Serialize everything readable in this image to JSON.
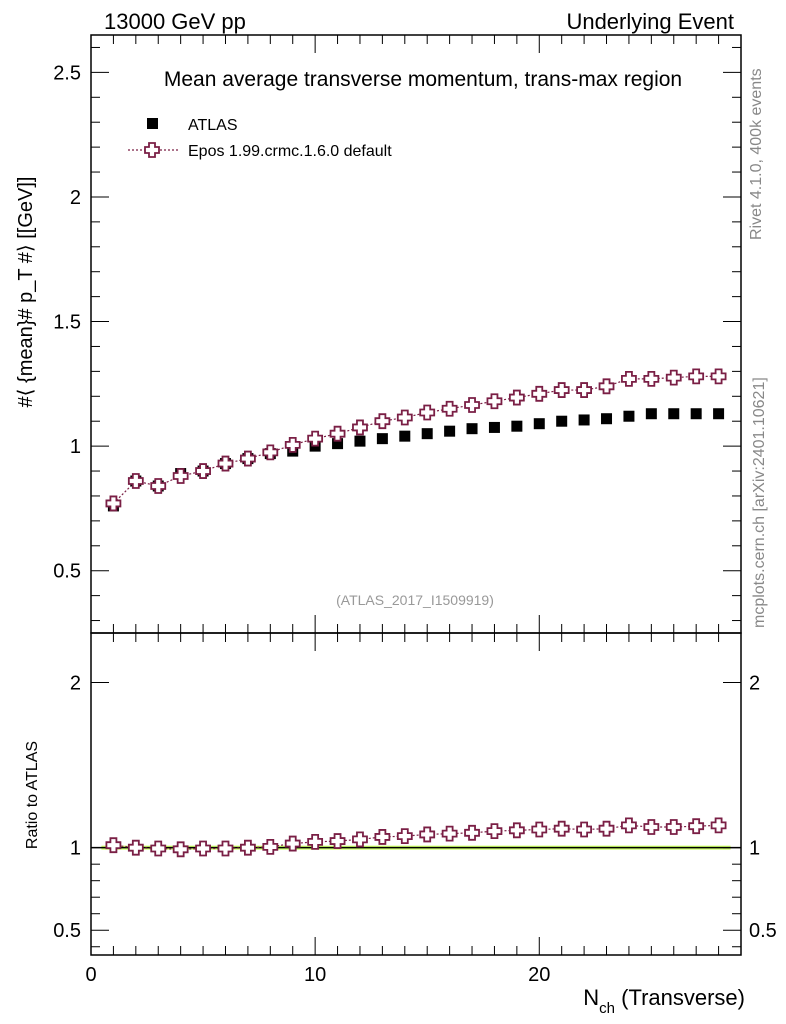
{
  "header": {
    "left": "13000 GeV pp",
    "right": "Underlying Event"
  },
  "side_labels": {
    "rivet": "Rivet 4.1.0,  400k events",
    "mcplots": "mcplots.cern.ch [arXiv:2401.10621]"
  },
  "colors": {
    "data": "#000000",
    "mc": "#7a1f45",
    "band": "#ccff66"
  },
  "chart_data": [
    {
      "type": "scatter",
      "panel": "main",
      "title": "Mean average transverse momentum, trans-max region",
      "analysis_tag": "(ATLAS_2017_I1509919)",
      "xlabel": "N_ch (Transverse)",
      "ylabel": "#⟨ {mean}# p_T #⟩ [[GeV]]",
      "xlim": [
        0,
        29
      ],
      "ylim": [
        0.25,
        2.65
      ],
      "yticks": [
        0.5,
        1,
        1.5,
        2,
        2.5
      ],
      "ytick_labels": [
        "0.5",
        "1",
        "1.5",
        "2",
        "2.5"
      ],
      "legend_position": "top-left",
      "x": [
        1,
        2,
        3,
        4,
        5,
        6,
        7,
        8,
        9,
        10,
        11,
        12,
        13,
        14,
        15,
        16,
        17,
        18,
        19,
        20,
        21,
        22,
        23,
        24,
        25,
        26,
        27,
        28
      ],
      "series": [
        {
          "name": "ATLAS",
          "marker": "filled-square",
          "values": [
            0.76,
            0.86,
            0.84,
            0.89,
            0.9,
            0.93,
            0.95,
            0.97,
            0.98,
            1.0,
            1.01,
            1.02,
            1.03,
            1.04,
            1.05,
            1.06,
            1.07,
            1.075,
            1.08,
            1.09,
            1.1,
            1.105,
            1.11,
            1.12,
            1.13,
            1.13,
            1.13,
            1.13
          ]
        },
        {
          "name": "Epos 1.99.crmc.1.6.0 default",
          "marker": "open-cross",
          "values": [
            0.77,
            0.86,
            0.84,
            0.88,
            0.9,
            0.93,
            0.95,
            0.975,
            1.005,
            1.03,
            1.05,
            1.075,
            1.1,
            1.115,
            1.135,
            1.15,
            1.165,
            1.18,
            1.195,
            1.21,
            1.225,
            1.225,
            1.24,
            1.27,
            1.27,
            1.275,
            1.28,
            1.28
          ]
        }
      ]
    },
    {
      "type": "scatter",
      "panel": "ratio",
      "ylabel": "Ratio to ATLAS",
      "xlim": [
        0,
        29
      ],
      "ylim": [
        0.35,
        2.3
      ],
      "yticks": [
        0.5,
        1,
        2
      ],
      "ytick_labels": [
        "0.5",
        "1",
        "2"
      ],
      "xticks": [
        0,
        10,
        20
      ],
      "xtick_labels": [
        "0",
        "10",
        "20"
      ],
      "reference_line": 1,
      "x": [
        1,
        2,
        3,
        4,
        5,
        6,
        7,
        8,
        9,
        10,
        11,
        12,
        13,
        14,
        15,
        16,
        17,
        18,
        19,
        20,
        21,
        22,
        23,
        24,
        25,
        26,
        27,
        28
      ],
      "series": [
        {
          "name": "Epos 1.99.crmc.1.6.0 default",
          "values": [
            1.015,
            1.0,
            0.995,
            0.99,
            0.995,
            0.995,
            1.0,
            1.005,
            1.025,
            1.035,
            1.04,
            1.05,
            1.065,
            1.07,
            1.08,
            1.085,
            1.09,
            1.1,
            1.105,
            1.11,
            1.115,
            1.11,
            1.115,
            1.135,
            1.125,
            1.125,
            1.13,
            1.135
          ]
        }
      ]
    }
  ]
}
